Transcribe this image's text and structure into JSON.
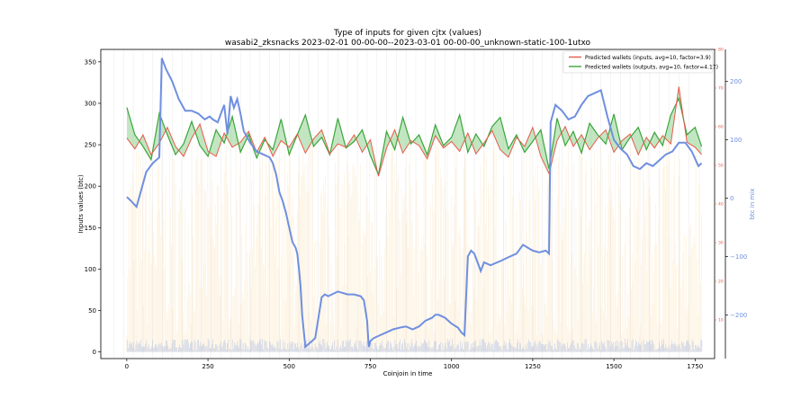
{
  "chart_data": {
    "type": "line",
    "title": "Type of inputs for given cjtx (values)",
    "subtitle": "wasabi2_zksnacks 2023-02-01 00-00-00--2023-03-01 00-00-00_unknown-static-100-1utxo",
    "xlabel": "Coinjoin in time",
    "ylabel": "Inputs values (btc)",
    "ylabel_right": "btc in mix",
    "xlim": [
      -80,
      1810
    ],
    "ylim": [
      -8,
      365
    ],
    "ylim_right": [
      -275,
      255
    ],
    "ylim_right_inner": [
      0,
      80
    ],
    "x_ticks": [
      0,
      250,
      500,
      750,
      1000,
      1250,
      1500,
      1750
    ],
    "y_ticks": [
      0,
      50,
      100,
      150,
      200,
      250,
      300,
      350
    ],
    "y_right_ticks": [
      -200,
      -100,
      0,
      100,
      200
    ],
    "y_right_inner_ticks": [
      10,
      20,
      30,
      40,
      50,
      60,
      70,
      80
    ],
    "legend_position": "top-right",
    "grid": "vertical lines only",
    "colors": {
      "inputs": "#e8594a",
      "outputs": "#3aa53a",
      "fill_between": "#8fd18f",
      "mix": "#6f8fe0",
      "bars_orange": "#f5c97a",
      "bars_blue": "#8aa8e8",
      "inner_axis": "#e8594a"
    },
    "series": [
      {
        "name": "Predicted wallets (inputs, avg=10, factor=3.9)",
        "x": [
          0,
          25,
          50,
          75,
          100,
          125,
          150,
          175,
          200,
          225,
          250,
          275,
          300,
          325,
          350,
          375,
          400,
          425,
          450,
          475,
          500,
          525,
          550,
          575,
          600,
          625,
          650,
          675,
          700,
          725,
          750,
          775,
          800,
          825,
          850,
          875,
          900,
          925,
          950,
          975,
          1000,
          1025,
          1050,
          1075,
          1100,
          1125,
          1150,
          1175,
          1200,
          1225,
          1250,
          1275,
          1300,
          1325,
          1350,
          1375,
          1400,
          1425,
          1450,
          1475,
          1500,
          1525,
          1550,
          1575,
          1600,
          1625,
          1650,
          1675,
          1700,
          1725,
          1750,
          1770
        ],
        "y": [
          258,
          245,
          262,
          238,
          252,
          271,
          248,
          236,
          258,
          275,
          242,
          236,
          264,
          247,
          253,
          266,
          241,
          259,
          236,
          255,
          247,
          263,
          240,
          257,
          268,
          239,
          251,
          247,
          262,
          241,
          256,
          212,
          246,
          268,
          240,
          255,
          249,
          233,
          261,
          246,
          254,
          242,
          264,
          239,
          252,
          267,
          244,
          235,
          259,
          248,
          271,
          236,
          215,
          255,
          272,
          248,
          262,
          244,
          258,
          268,
          241,
          255,
          263,
          238,
          259,
          246,
          261,
          251,
          320,
          253,
          247,
          238
        ]
      },
      {
        "name": "Predicted wallets (outputs, avg=10, factor=4.17)",
        "x": [
          0,
          25,
          50,
          75,
          100,
          125,
          150,
          175,
          200,
          225,
          250,
          275,
          300,
          325,
          350,
          375,
          400,
          425,
          450,
          475,
          500,
          525,
          550,
          575,
          600,
          625,
          650,
          675,
          700,
          725,
          750,
          775,
          800,
          825,
          850,
          875,
          900,
          925,
          950,
          975,
          1000,
          1025,
          1050,
          1075,
          1100,
          1125,
          1150,
          1175,
          1200,
          1225,
          1250,
          1275,
          1300,
          1325,
          1350,
          1375,
          1400,
          1425,
          1450,
          1475,
          1500,
          1525,
          1550,
          1575,
          1600,
          1625,
          1650,
          1675,
          1700,
          1725,
          1750,
          1770
        ],
        "y": [
          295,
          262,
          248,
          232,
          288,
          262,
          238,
          251,
          278,
          249,
          236,
          268,
          252,
          284,
          241,
          262,
          234,
          256,
          244,
          281,
          238,
          262,
          286,
          248,
          259,
          238,
          282,
          246,
          254,
          268,
          237,
          214,
          266,
          244,
          283,
          251,
          262,
          238,
          274,
          249,
          259,
          286,
          241,
          263,
          248,
          272,
          283,
          245,
          262,
          241,
          254,
          268,
          221,
          282,
          249,
          266,
          240,
          276,
          262,
          251,
          287,
          244,
          259,
          271,
          244,
          265,
          249,
          286,
          306,
          262,
          271,
          248
        ]
      },
      {
        "name": "btc in mix",
        "axis": "right",
        "x": [
          0,
          10,
          30,
          40,
          60,
          80,
          100,
          108,
          120,
          140,
          160,
          180,
          200,
          220,
          240,
          255,
          265,
          280,
          300,
          310,
          320,
          330,
          340,
          350,
          360,
          380,
          400,
          420,
          440,
          450,
          460,
          470,
          480,
          490,
          500,
          510,
          520,
          525,
          530,
          535,
          540,
          550,
          560,
          570,
          580,
          590,
          600,
          610,
          620,
          650,
          680,
          700,
          720,
          730,
          740,
          745,
          750,
          760,
          780,
          800,
          820,
          840,
          860,
          880,
          900,
          920,
          940,
          950,
          960,
          980,
          1000,
          1020,
          1030,
          1040,
          1050,
          1060,
          1070,
          1080,
          1090,
          1100,
          1120,
          1150,
          1180,
          1200,
          1220,
          1250,
          1270,
          1290,
          1300,
          1305,
          1320,
          1340,
          1360,
          1380,
          1400,
          1420,
          1440,
          1460,
          1480,
          1500,
          1520,
          1540,
          1560,
          1580,
          1600,
          1620,
          1640,
          1660,
          1680,
          1700,
          1720,
          1740,
          1760,
          1770
        ],
        "y": [
          2,
          -3,
          -15,
          5,
          45,
          60,
          70,
          240,
          222,
          200,
          170,
          150,
          150,
          145,
          135,
          140,
          135,
          130,
          160,
          110,
          175,
          155,
          170,
          145,
          115,
          95,
          80,
          75,
          70,
          60,
          40,
          10,
          -5,
          -25,
          -50,
          -75,
          -85,
          -95,
          -120,
          -150,
          -200,
          -255,
          -250,
          -245,
          -240,
          -205,
          -170,
          -165,
          -168,
          -160,
          -165,
          -165,
          -168,
          -175,
          -210,
          -255,
          -245,
          -240,
          -235,
          -230,
          -225,
          -222,
          -220,
          -225,
          -220,
          -210,
          -205,
          -200,
          -200,
          -205,
          -215,
          -222,
          -230,
          -235,
          -100,
          -90,
          -95,
          -110,
          -125,
          -110,
          -115,
          -108,
          -100,
          -95,
          -80,
          -90,
          -93,
          -90,
          -95,
          130,
          160,
          150,
          135,
          140,
          160,
          175,
          180,
          185,
          140,
          100,
          85,
          75,
          55,
          50,
          60,
          55,
          65,
          75,
          80,
          95,
          95,
          80,
          55,
          60
        ]
      }
    ]
  }
}
